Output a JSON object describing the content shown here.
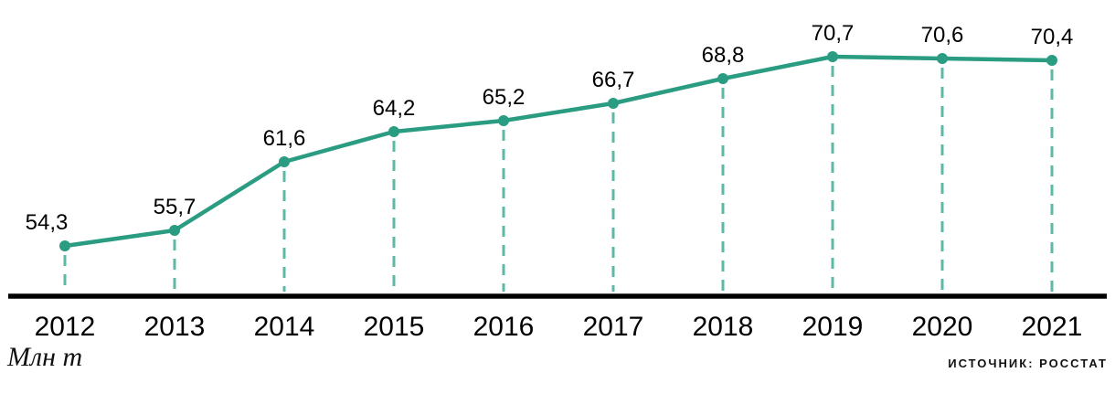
{
  "chart_data": {
    "type": "line",
    "categories": [
      "2012",
      "2013",
      "2014",
      "2015",
      "2016",
      "2017",
      "2018",
      "2019",
      "2020",
      "2021"
    ],
    "values": [
      54.3,
      55.7,
      61.6,
      64.2,
      65.2,
      66.7,
      68.8,
      70.7,
      70.6,
      70.4
    ],
    "point_labels": [
      "54,3",
      "55,7",
      "61,6",
      "64,2",
      "65,2",
      "66,7",
      "68,8",
      "70,7",
      "70,6",
      "70,4"
    ],
    "title": "",
    "xlabel": "",
    "ylabel": "Млн т",
    "ylim": [
      52,
      73
    ],
    "grid": false,
    "legend": "none",
    "guide_lines": "dashed-vertical-from-point-to-axis",
    "colors": {
      "line": "#2a9c81",
      "point": "#2a9c81",
      "dashed_guide": "#5cb9a5",
      "axis": "#000000",
      "text": "#000000"
    }
  },
  "footer": {
    "unit_label": "Млн т",
    "source": "ИСТОЧНИК: РОССТАТ"
  }
}
